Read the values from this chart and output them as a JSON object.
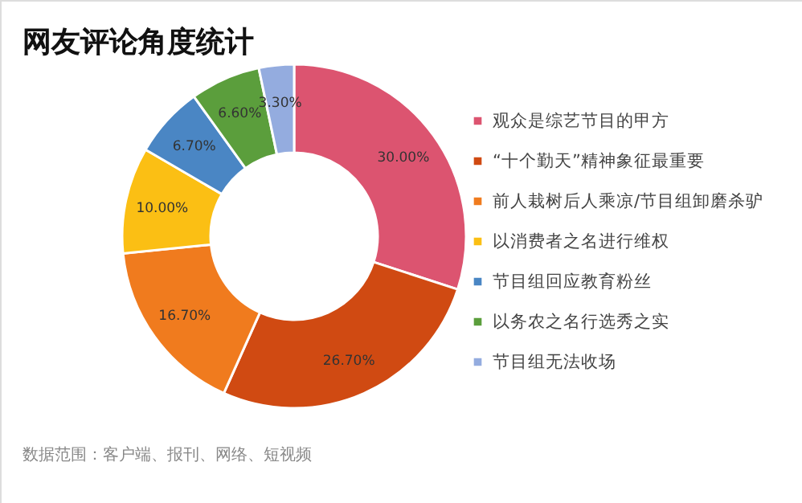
{
  "chart_data": {
    "type": "donut",
    "title": "网友评论角度统计",
    "categories": [
      "观众是综艺节目的甲方",
      "“十个勤天”精神象征最重要",
      "前人栽树后人乘凉/节目组卸磨杀驴",
      "以消费者之名进行维权",
      "节目组回应教育粉丝",
      "以务农之名行选秀之实",
      "节目组无法收场"
    ],
    "values": [
      30.0,
      26.7,
      16.7,
      10.0,
      6.7,
      6.6,
      3.3
    ],
    "value_labels": [
      "30.00%",
      "26.70%",
      "16.70%",
      "10.00%",
      "6.70%",
      "6.60%",
      "3.30%"
    ],
    "colors": [
      "#dc5470",
      "#d04a12",
      "#f07b1e",
      "#fbbf14",
      "#4a86c4",
      "#5b9e3c",
      "#94acdf"
    ],
    "legend": "right",
    "annotations": [
      "数据范围：客户端、报刊、网络、短视频"
    ]
  }
}
